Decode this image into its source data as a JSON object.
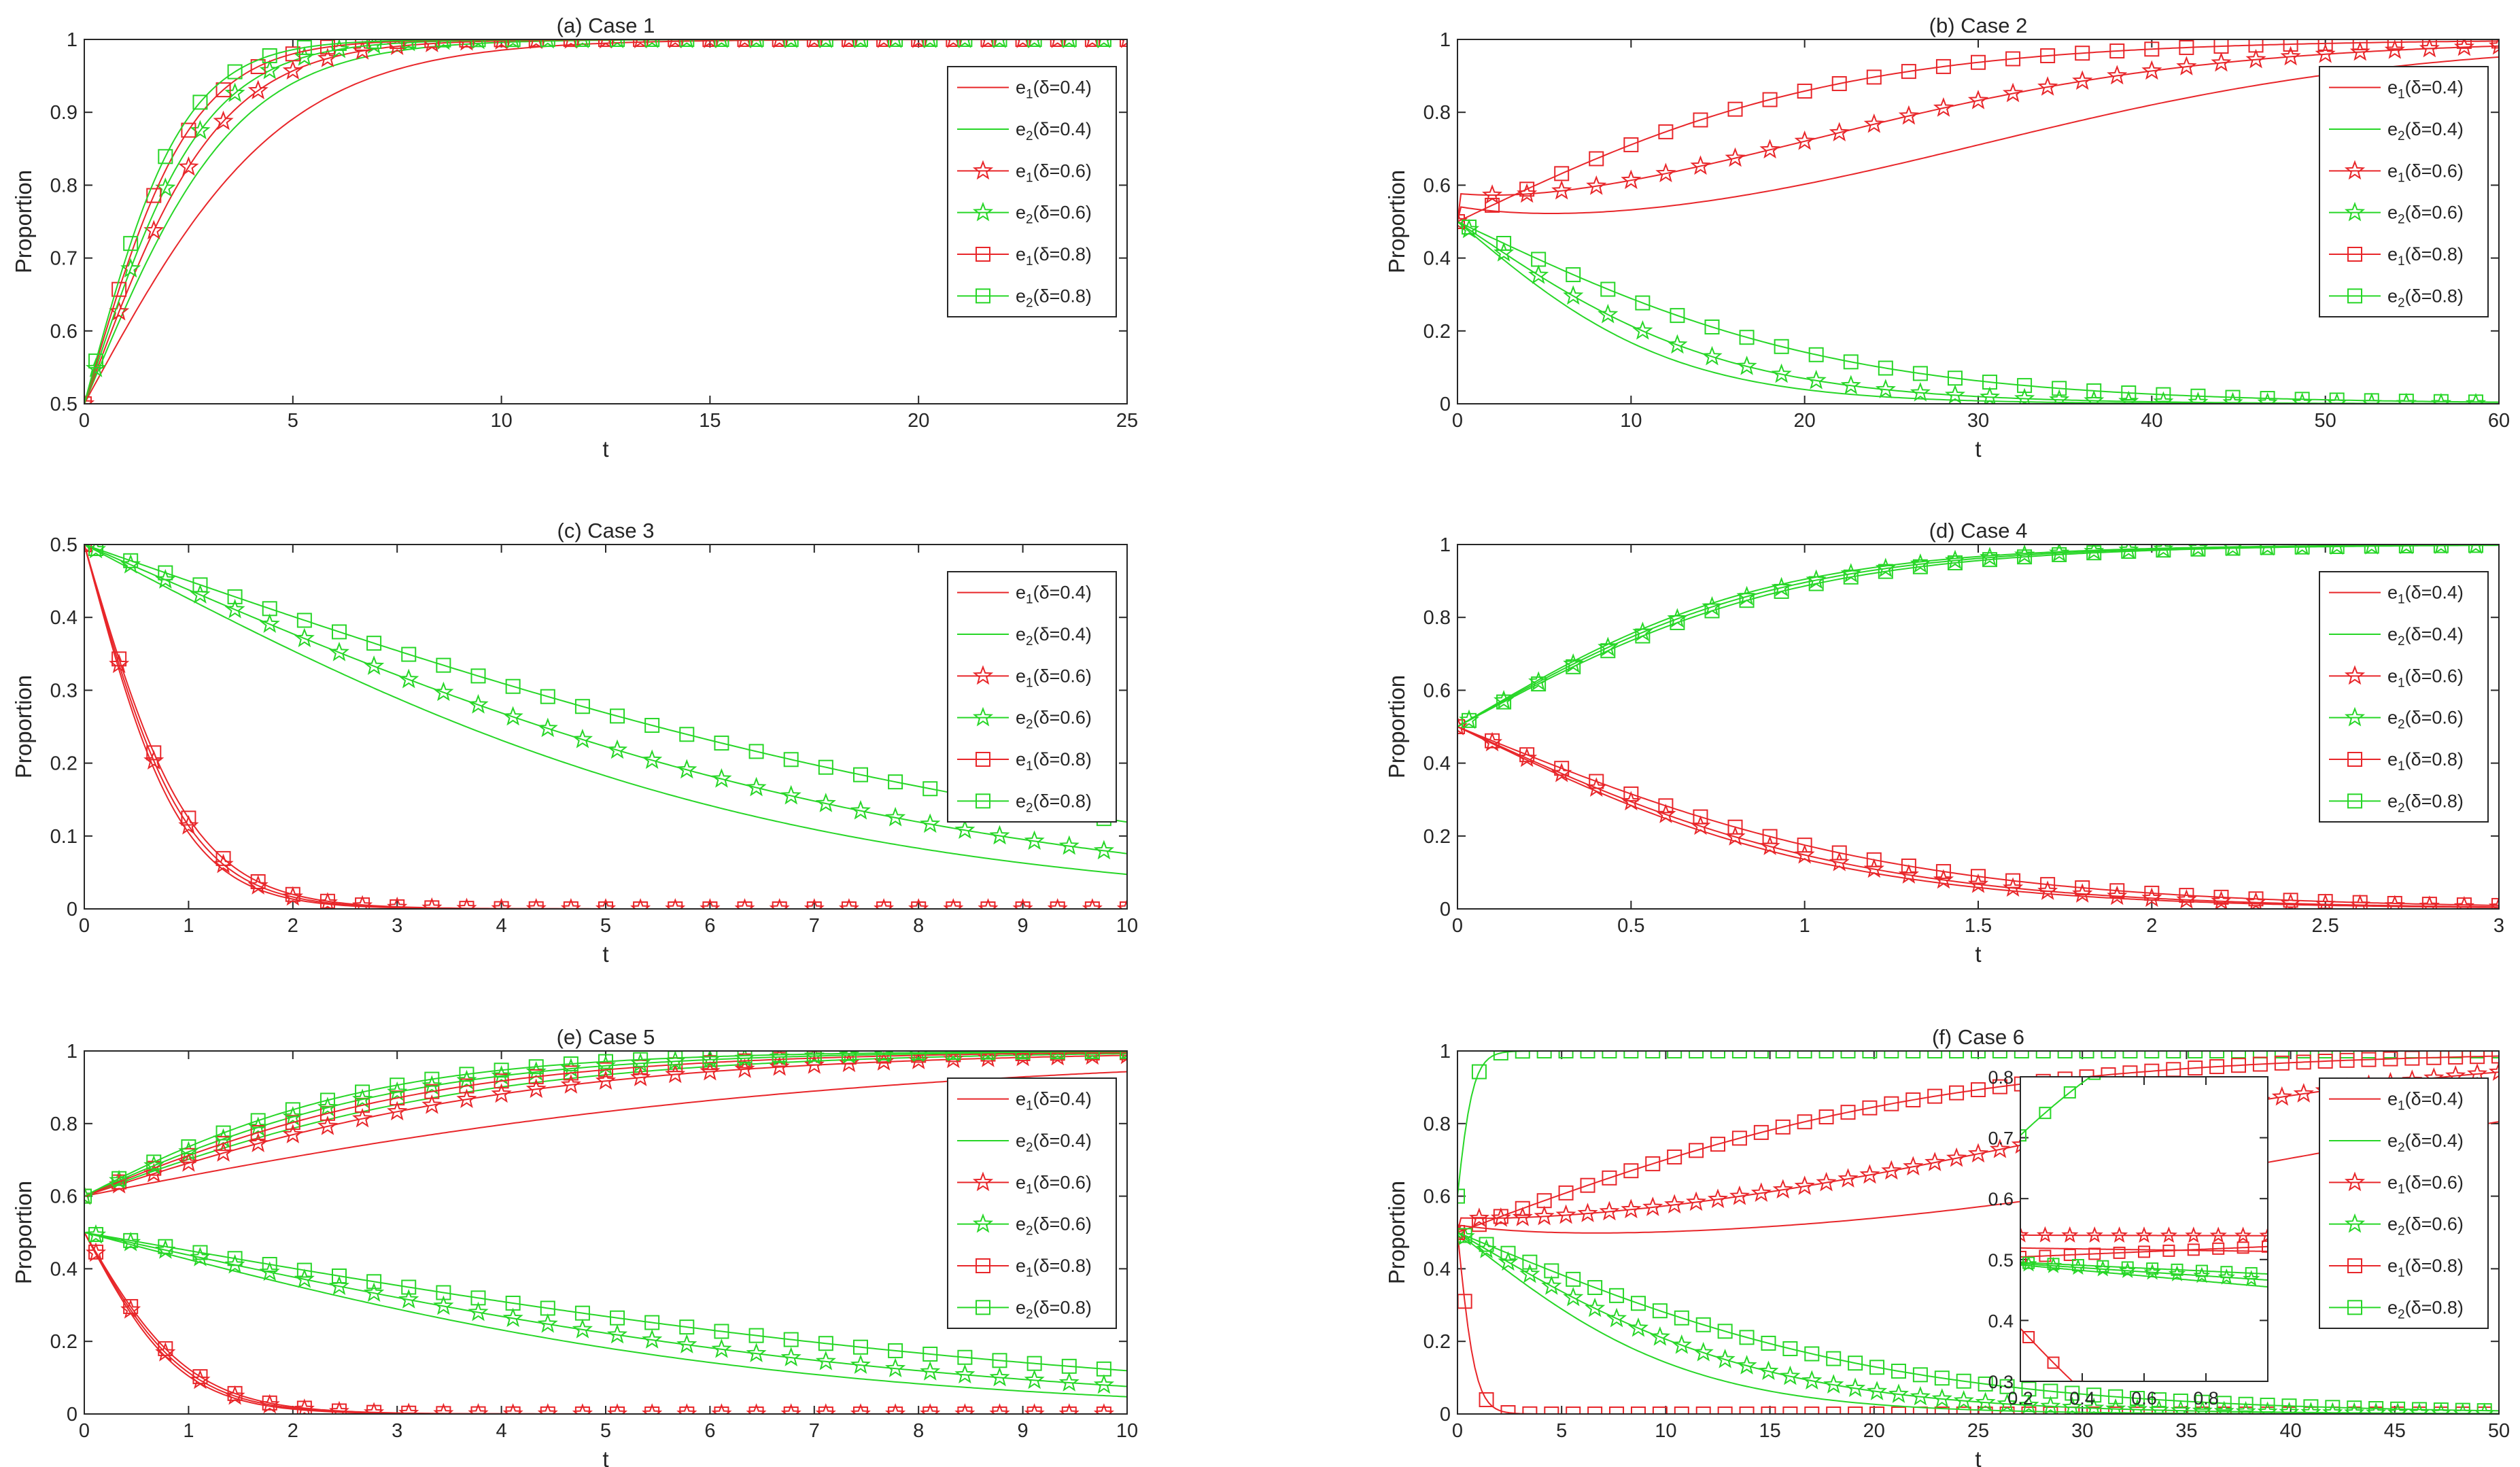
{
  "colors": {
    "e1": "#e8262a",
    "e2": "#27d627",
    "axis": "#262626"
  },
  "legend_entries": [
    {
      "var": "e",
      "sub": "1",
      "rest": "(δ=0.4)",
      "series": "e1",
      "marker": "none"
    },
    {
      "var": "e",
      "sub": "2",
      "rest": "(δ=0.4)",
      "series": "e2",
      "marker": "none"
    },
    {
      "var": "e",
      "sub": "1",
      "rest": "(δ=0.6)",
      "series": "e1",
      "marker": "star"
    },
    {
      "var": "e",
      "sub": "2",
      "rest": "(δ=0.6)",
      "series": "e2",
      "marker": "star"
    },
    {
      "var": "e",
      "sub": "1",
      "rest": "(δ=0.8)",
      "series": "e1",
      "marker": "square"
    },
    {
      "var": "e",
      "sub": "2",
      "rest": "(δ=0.8)",
      "series": "e2",
      "marker": "square"
    }
  ],
  "chart_data": [
    {
      "type": "line",
      "title": "(a)  Case 1",
      "xlabel": "t",
      "ylabel": "Proportion",
      "xlim": [
        0,
        25
      ],
      "ylim": [
        0.5,
        1
      ],
      "xticks": [
        "0",
        "5",
        "10",
        "15",
        "20",
        "25"
      ],
      "yticks": [
        "0.5",
        "0.6",
        "0.7",
        "0.8",
        "0.9",
        "1"
      ],
      "series": [
        {
          "name": "e1(δ=0.4)",
          "color": "e1",
          "marker": "none",
          "model": {
            "kind": "logistic",
            "y0": 0.5,
            "r": 0.42
          }
        },
        {
          "name": "e2(δ=0.4)",
          "color": "e2",
          "marker": "none",
          "model": {
            "kind": "logistic",
            "y0": 0.5,
            "r": 0.55
          }
        },
        {
          "name": "e1(δ=0.6)",
          "color": "e1",
          "marker": "star",
          "model": {
            "kind": "logistic",
            "y0": 0.5,
            "r": 0.62
          }
        },
        {
          "name": "e2(δ=0.6)",
          "color": "e2",
          "marker": "star",
          "model": {
            "kind": "logistic",
            "y0": 0.5,
            "r": 0.7
          }
        },
        {
          "name": "e1(δ=0.8)",
          "color": "e1",
          "marker": "square",
          "model": {
            "kind": "logistic",
            "y0": 0.5,
            "r": 0.78
          }
        },
        {
          "name": "e2(δ=0.8)",
          "color": "e2",
          "marker": "square",
          "model": {
            "kind": "logistic",
            "y0": 0.5,
            "r": 0.85
          }
        }
      ]
    },
    {
      "type": "line",
      "title": "(b)  Case 2",
      "xlabel": "t",
      "ylabel": "Proportion",
      "xlim": [
        0,
        60
      ],
      "ylim": [
        0,
        1
      ],
      "xticks": [
        "0",
        "10",
        "20",
        "30",
        "40",
        "50",
        "60"
      ],
      "yticks": [
        "0",
        "0.2",
        "0.4",
        "0.6",
        "0.8",
        "1"
      ],
      "series": [
        {
          "name": "e1(δ=0.4)",
          "color": "e1",
          "marker": "none",
          "model": {
            "kind": "dip",
            "y0": 0.5,
            "d": 0.08,
            "k": 0.15,
            "r": 0.08,
            "t0": 30
          }
        },
        {
          "name": "e2(δ=0.4)",
          "color": "e2",
          "marker": "none",
          "model": {
            "kind": "logistic",
            "y0": 0.5,
            "r": -0.16
          }
        },
        {
          "name": "e1(δ=0.6)",
          "color": "e1",
          "marker": "star",
          "model": {
            "kind": "dip",
            "y0": 0.5,
            "d": 0.06,
            "k": 0.2,
            "r": 0.085,
            "t0": 20
          }
        },
        {
          "name": "e2(δ=0.6)",
          "color": "e2",
          "marker": "star",
          "model": {
            "kind": "logistic",
            "y0": 0.5,
            "r": -0.13
          }
        },
        {
          "name": "e1(δ=0.8)",
          "color": "e1",
          "marker": "square",
          "model": {
            "kind": "logistic",
            "y0": 0.5,
            "r": 0.09
          }
        },
        {
          "name": "e2(δ=0.8)",
          "color": "e2",
          "marker": "square",
          "model": {
            "kind": "logistic",
            "y0": 0.5,
            "r": -0.09
          }
        }
      ]
    },
    {
      "type": "line",
      "title": "(c)  Case 3",
      "xlabel": "t",
      "ylabel": "Proportion",
      "xlim": [
        0,
        10
      ],
      "ylim": [
        0,
        0.5
      ],
      "xticks": [
        "0",
        "1",
        "2",
        "3",
        "4",
        "5",
        "6",
        "7",
        "8",
        "9",
        "10"
      ],
      "yticks": [
        "0",
        "0.1",
        "0.2",
        "0.3",
        "0.4",
        "0.5"
      ],
      "series": [
        {
          "name": "e1(δ=0.4)",
          "color": "e1",
          "marker": "none",
          "model": {
            "kind": "logistic",
            "y0": 0.5,
            "r": -2.15
          }
        },
        {
          "name": "e2(δ=0.4)",
          "color": "e2",
          "marker": "none",
          "model": {
            "kind": "logistic",
            "y0": 0.5,
            "r": -0.3
          }
        },
        {
          "name": "e1(δ=0.6)",
          "color": "e1",
          "marker": "star",
          "model": {
            "kind": "logistic",
            "y0": 0.5,
            "r": -2.05
          }
        },
        {
          "name": "e2(δ=0.6)",
          "color": "e2",
          "marker": "star",
          "model": {
            "kind": "logistic",
            "y0": 0.5,
            "r": -0.25
          }
        },
        {
          "name": "e1(δ=0.8)",
          "color": "e1",
          "marker": "square",
          "model": {
            "kind": "logistic",
            "y0": 0.5,
            "r": -1.95
          }
        },
        {
          "name": "e2(δ=0.8)",
          "color": "e2",
          "marker": "square",
          "model": {
            "kind": "logistic",
            "y0": 0.5,
            "r": -0.2
          }
        }
      ]
    },
    {
      "type": "line",
      "title": "(d)  Case 4",
      "xlabel": "t",
      "ylabel": "Proportion",
      "xlim": [
        0,
        3
      ],
      "ylim": [
        0,
        1
      ],
      "xticks": [
        "0",
        "0.5",
        "1",
        "1.5",
        "2",
        "2.5",
        "3"
      ],
      "yticks": [
        "0",
        "0.2",
        "0.4",
        "0.6",
        "0.8",
        "1"
      ],
      "series": [
        {
          "name": "e1(δ=0.4)",
          "color": "e1",
          "marker": "none",
          "model": {
            "kind": "logistic",
            "y0": 0.5,
            "r": -1.85
          }
        },
        {
          "name": "e2(δ=0.4)",
          "color": "e2",
          "marker": "none",
          "model": {
            "kind": "logistic",
            "y0": 0.5,
            "r": 2.25
          }
        },
        {
          "name": "e1(δ=0.6)",
          "color": "e1",
          "marker": "star",
          "model": {
            "kind": "logistic",
            "y0": 0.5,
            "r": -1.75
          }
        },
        {
          "name": "e2(δ=0.6)",
          "color": "e2",
          "marker": "star",
          "model": {
            "kind": "logistic",
            "y0": 0.5,
            "r": 2.15
          }
        },
        {
          "name": "e1(δ=0.8)",
          "color": "e1",
          "marker": "square",
          "model": {
            "kind": "logistic",
            "y0": 0.5,
            "r": -1.55
          }
        },
        {
          "name": "e2(δ=0.8)",
          "color": "e2",
          "marker": "square",
          "model": {
            "kind": "logistic",
            "y0": 0.5,
            "r": 2.05
          }
        }
      ]
    },
    {
      "type": "line",
      "title": "(e)  Case 5",
      "xlabel": "t",
      "ylabel": "Proportion",
      "xlim": [
        0,
        10
      ],
      "ylim": [
        0,
        1
      ],
      "xticks": [
        "0",
        "1",
        "2",
        "3",
        "4",
        "5",
        "6",
        "7",
        "8",
        "9",
        "10"
      ],
      "yticks": [
        "0",
        "0.2",
        "0.4",
        "0.6",
        "0.8",
        "1"
      ],
      "series": [
        {
          "name": "e1(δ=0.4)",
          "color": "e1",
          "marker": "none",
          "model": {
            "kind": "logistic",
            "y0": 0.6,
            "r": 0.24
          }
        },
        {
          "name": "e1(δ=0.4)",
          "color": "e1",
          "marker": "none",
          "model": {
            "kind": "logistic",
            "y0": 0.5,
            "r": -2.15
          }
        },
        {
          "name": "e2(δ=0.4)",
          "color": "e2",
          "marker": "none",
          "model": {
            "kind": "logistic",
            "y0": 0.6,
            "r": 0.45
          }
        },
        {
          "name": "e2(δ=0.4)",
          "color": "e2",
          "marker": "none",
          "model": {
            "kind": "logistic",
            "y0": 0.5,
            "r": -0.3
          }
        },
        {
          "name": "e1(δ=0.6)",
          "color": "e1",
          "marker": "star",
          "model": {
            "kind": "logistic",
            "y0": 0.6,
            "r": 0.4
          }
        },
        {
          "name": "e1(δ=0.6)",
          "color": "e1",
          "marker": "star",
          "model": {
            "kind": "logistic",
            "y0": 0.5,
            "r": -2.05
          }
        },
        {
          "name": "e2(δ=0.6)",
          "color": "e2",
          "marker": "star",
          "model": {
            "kind": "logistic",
            "y0": 0.6,
            "r": 0.55
          }
        },
        {
          "name": "e2(δ=0.6)",
          "color": "e2",
          "marker": "star",
          "model": {
            "kind": "logistic",
            "y0": 0.5,
            "r": -0.25
          }
        },
        {
          "name": "e1(δ=0.8)",
          "color": "e1",
          "marker": "square",
          "model": {
            "kind": "logistic",
            "y0": 0.6,
            "r": 0.5
          }
        },
        {
          "name": "e1(δ=0.8)",
          "color": "e1",
          "marker": "square",
          "model": {
            "kind": "logistic",
            "y0": 0.5,
            "r": -1.95
          }
        },
        {
          "name": "e2(δ=0.8)",
          "color": "e2",
          "marker": "square",
          "model": {
            "kind": "logistic",
            "y0": 0.6,
            "r": 0.62
          }
        },
        {
          "name": "e2(δ=0.8)",
          "color": "e2",
          "marker": "square",
          "model": {
            "kind": "logistic",
            "y0": 0.5,
            "r": -0.2
          }
        }
      ]
    },
    {
      "type": "line",
      "title": "(f)  Case 6",
      "xlabel": "t",
      "ylabel": "Proportion",
      "xlim": [
        0,
        50
      ],
      "ylim": [
        0,
        1
      ],
      "xticks": [
        "0",
        "5",
        "10",
        "15",
        "20",
        "25",
        "30",
        "35",
        "40",
        "45",
        "50"
      ],
      "yticks": [
        "0",
        "0.2",
        "0.4",
        "0.6",
        "0.8",
        "1"
      ],
      "series": [
        {
          "name": "e2(δ=0.4)",
          "color": "e2",
          "marker": "square",
          "model": {
            "kind": "logistic",
            "y0": 0.6,
            "r": 2.3
          }
        },
        {
          "name": "e1(δ=0.4)",
          "color": "e1",
          "marker": "square",
          "model": {
            "kind": "logistic",
            "y0": 0.5,
            "r": -2.3
          }
        },
        {
          "name": "e1(δ=0.4)",
          "color": "e1",
          "marker": "none",
          "model": {
            "kind": "dip",
            "y0": 0.5,
            "d": 0.05,
            "k": 0.2,
            "r": 0.075,
            "t0": 42
          }
        },
        {
          "name": "e2(δ=0.4)",
          "color": "e2",
          "marker": "none",
          "model": {
            "kind": "logistic",
            "y0": 0.5,
            "r": -0.18
          }
        },
        {
          "name": "e1(δ=0.6)",
          "color": "e1",
          "marker": "star",
          "model": {
            "kind": "dip",
            "y0": 0.5,
            "d": 0.02,
            "k": 0.3,
            "r": 0.09,
            "t0": 27
          }
        },
        {
          "name": "e2(δ=0.6)",
          "color": "e2",
          "marker": "star",
          "model": {
            "kind": "logistic",
            "y0": 0.5,
            "r": -0.135
          }
        },
        {
          "name": "e1(δ=0.8)",
          "color": "e1",
          "marker": "square",
          "model": {
            "kind": "logistic",
            "y0": 0.5,
            "r": 0.085
          }
        },
        {
          "name": "e2(δ=0.8)",
          "color": "e2",
          "marker": "square",
          "model": {
            "kind": "logistic",
            "y0": 0.5,
            "r": -0.095
          }
        }
      ],
      "inset": {
        "xlim": [
          0.2,
          1
        ],
        "ylim": [
          0.3,
          0.8
        ],
        "xticks": [
          "0.2",
          "0.4",
          "0.6",
          "0.8"
        ],
        "yticks": [
          "0.3",
          "0.4",
          "0.5",
          "0.6",
          "0.7",
          "0.8"
        ]
      }
    }
  ]
}
